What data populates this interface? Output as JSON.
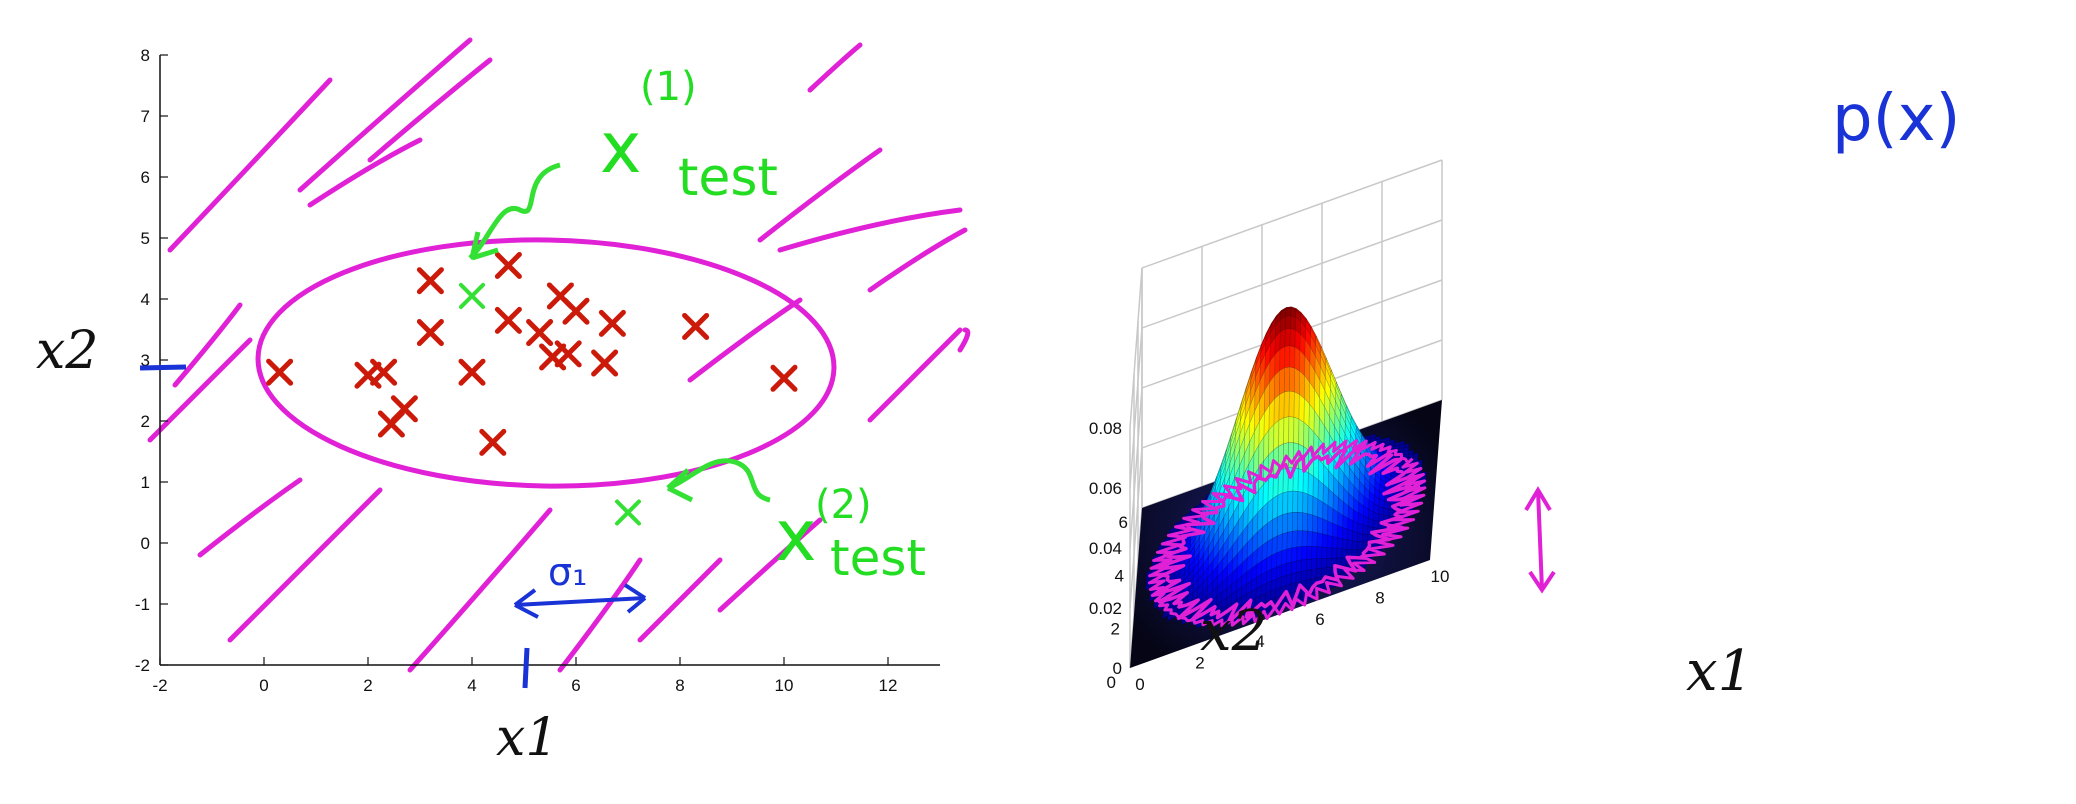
{
  "colors": {
    "magenta": "#e021d6",
    "green": "#33e033",
    "blue": "#1a33d6",
    "red": "#cc1a0a",
    "axis": "#111111",
    "grid": "#c8c8c8"
  },
  "chart_data": [
    {
      "type": "scatter",
      "xlabel": "x1",
      "ylabel": "x2",
      "xlim": [
        -2,
        13
      ],
      "ylim": [
        -2,
        8
      ],
      "xticks": [
        "-2",
        "0",
        "2",
        "4",
        "6",
        "8",
        "10",
        "12"
      ],
      "yticks": [
        "-2",
        "-1",
        "0",
        "1",
        "2",
        "3",
        "4",
        "5",
        "6",
        "7",
        "8"
      ],
      "points": [
        {
          "x": 0.3,
          "y": 2.8
        },
        {
          "x": 2.0,
          "y": 2.75
        },
        {
          "x": 2.3,
          "y": 2.8
        },
        {
          "x": 2.7,
          "y": 2.2
        },
        {
          "x": 2.45,
          "y": 1.95
        },
        {
          "x": 3.2,
          "y": 4.3
        },
        {
          "x": 3.2,
          "y": 3.45
        },
        {
          "x": 4.0,
          "y": 2.8
        },
        {
          "x": 4.4,
          "y": 1.65
        },
        {
          "x": 4.7,
          "y": 4.55
        },
        {
          "x": 4.7,
          "y": 3.65
        },
        {
          "x": 5.3,
          "y": 3.45
        },
        {
          "x": 5.7,
          "y": 4.05
        },
        {
          "x": 5.55,
          "y": 3.05
        },
        {
          "x": 5.85,
          "y": 3.1
        },
        {
          "x": 6.0,
          "y": 3.8
        },
        {
          "x": 6.55,
          "y": 2.95
        },
        {
          "x": 6.7,
          "y": 3.6
        },
        {
          "x": 8.3,
          "y": 3.55
        },
        {
          "x": 10.0,
          "y": 2.7
        }
      ],
      "test_points": [
        {
          "x": 4.0,
          "y": 4.05
        },
        {
          "x": 7.0,
          "y": 0.5
        }
      ],
      "annotations": {
        "test1_main": "x",
        "test1_sup": "(1)",
        "test1_sub": "test",
        "test2_main": "x",
        "test2_sup": "(2)",
        "test2_sub": "test",
        "sigma": "σ₁"
      }
    },
    {
      "type": "surface",
      "title": "p(x)",
      "xlabel": "x1",
      "ylabel": "x2",
      "zticks": [
        "0",
        "0.02",
        "0.04",
        "0.06",
        "0.08"
      ],
      "x1ticks": [
        "0",
        "2",
        "4",
        "6",
        "8",
        "10"
      ],
      "x2ticks": [
        "0",
        "2",
        "4",
        "6"
      ],
      "zlim": [
        0,
        0.08
      ],
      "peak": 0.075
    }
  ]
}
